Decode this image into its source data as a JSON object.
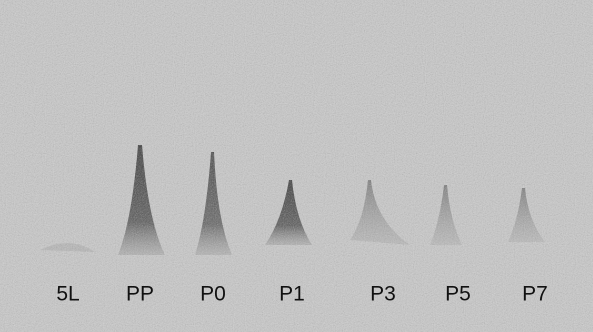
{
  "lanes": [
    {
      "label": "5L"
    },
    {
      "label": "PP"
    },
    {
      "label": "P0"
    },
    {
      "label": "P1"
    },
    {
      "label": "P3"
    },
    {
      "label": "P5"
    },
    {
      "label": "P7"
    }
  ]
}
